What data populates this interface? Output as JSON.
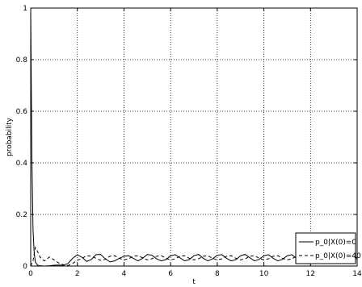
{
  "chart_data": {
    "type": "line",
    "xlabel": "t",
    "ylabel": "probability",
    "xlim": [
      0,
      14
    ],
    "ylim": [
      0,
      1
    ],
    "xticks": [
      0,
      2,
      4,
      6,
      8,
      10,
      12,
      14
    ],
    "yticks": [
      0,
      0.2,
      0.4,
      0.6,
      0.8,
      1
    ],
    "xtick_labels": [
      "0",
      "2",
      "4",
      "6",
      "8",
      "10",
      "12",
      "14"
    ],
    "ytick_labels": [
      "0",
      "0.2",
      "0.4",
      "0.6",
      "0.8",
      "1"
    ],
    "grid": true,
    "legend_position": "bottom-right",
    "series": [
      {
        "name": "p_0|X(0)=0",
        "style": "solid",
        "color": "#000000",
        "x": [
          0,
          0.05,
          0.1,
          0.15,
          0.2,
          0.3,
          0.4,
          0.6,
          0.8,
          1.0,
          1.2,
          1.4,
          1.6,
          1.8,
          2.0,
          2.2,
          2.4,
          2.6,
          2.8,
          3.0,
          3.2,
          3.4,
          3.6,
          3.8,
          4.0,
          4.2,
          4.4,
          4.6,
          4.8,
          5.0,
          5.2,
          5.4,
          5.6,
          5.8,
          6.0,
          6.2,
          6.4,
          6.6,
          6.8,
          7.0,
          7.2,
          7.4,
          7.6,
          7.8,
          8.0,
          8.2,
          8.4,
          8.6,
          8.8,
          9.0,
          9.2,
          9.4,
          9.6,
          9.8,
          10.0,
          10.2,
          10.4,
          10.6,
          10.8,
          11.0,
          11.2,
          11.4,
          11.6,
          11.8,
          12.0,
          12.2,
          12.4,
          12.6,
          12.8,
          13.0,
          13.2,
          13.4,
          13.6,
          13.8,
          14.0
        ],
        "values": [
          1.0,
          0.42,
          0.14,
          0.05,
          0.015,
          0.003,
          0.001,
          0.0,
          0.001,
          0.003,
          0.004,
          0.003,
          0.01,
          0.03,
          0.044,
          0.034,
          0.018,
          0.025,
          0.044,
          0.045,
          0.028,
          0.016,
          0.02,
          0.03,
          0.038,
          0.04,
          0.03,
          0.02,
          0.03,
          0.045,
          0.042,
          0.028,
          0.02,
          0.025,
          0.04,
          0.044,
          0.032,
          0.02,
          0.025,
          0.04,
          0.045,
          0.03,
          0.02,
          0.028,
          0.042,
          0.044,
          0.03,
          0.02,
          0.025,
          0.04,
          0.045,
          0.032,
          0.02,
          0.026,
          0.04,
          0.044,
          0.03,
          0.02,
          0.026,
          0.04,
          0.044,
          0.03,
          0.02,
          0.026,
          0.04,
          0.044,
          0.03,
          0.02,
          0.026,
          0.04,
          0.044,
          0.03,
          0.02,
          0.025,
          0.035
        ]
      },
      {
        "name": "p_0|X(0)=40",
        "style": "dashed",
        "color": "#000000",
        "x": [
          0,
          0.1,
          0.2,
          0.3,
          0.4,
          0.5,
          0.6,
          0.8,
          1.0,
          1.2,
          1.4,
          1.6,
          1.8,
          2.0,
          2.2,
          2.4,
          2.6,
          2.8,
          3.0,
          3.2,
          3.4,
          3.6,
          3.8,
          4.0,
          4.2,
          4.4,
          4.6,
          4.8,
          5.0,
          5.2,
          5.4,
          5.6,
          5.8,
          6.0,
          6.2,
          6.4,
          6.6,
          6.8,
          7.0,
          7.2,
          7.4,
          7.6,
          7.8,
          8.0,
          8.2,
          8.4,
          8.6,
          8.8,
          9.0,
          9.2,
          9.4,
          9.6,
          9.8,
          10.0,
          10.2,
          10.4,
          10.6,
          10.8,
          11.0,
          11.2,
          11.4,
          11.6,
          11.8,
          12.0,
          12.2,
          12.4,
          12.6,
          12.8,
          13.0,
          13.2,
          13.4,
          13.6,
          13.8,
          14.0
        ],
        "values": [
          0.0,
          0.02,
          0.072,
          0.055,
          0.035,
          0.025,
          0.02,
          0.035,
          0.024,
          0.012,
          0.005,
          0.002,
          0.01,
          0.022,
          0.03,
          0.04,
          0.038,
          0.03,
          0.022,
          0.026,
          0.038,
          0.04,
          0.03,
          0.024,
          0.028,
          0.038,
          0.04,
          0.032,
          0.024,
          0.028,
          0.038,
          0.04,
          0.03,
          0.024,
          0.028,
          0.038,
          0.04,
          0.03,
          0.024,
          0.028,
          0.038,
          0.04,
          0.03,
          0.024,
          0.028,
          0.038,
          0.04,
          0.03,
          0.024,
          0.028,
          0.038,
          0.04,
          0.03,
          0.024,
          0.028,
          0.038,
          0.04,
          0.03,
          0.024,
          0.028,
          0.038,
          0.04,
          0.03,
          0.024,
          0.028,
          0.038,
          0.04,
          0.03,
          0.024,
          0.028,
          0.038,
          0.04,
          0.03,
          0.028
        ]
      }
    ]
  }
}
